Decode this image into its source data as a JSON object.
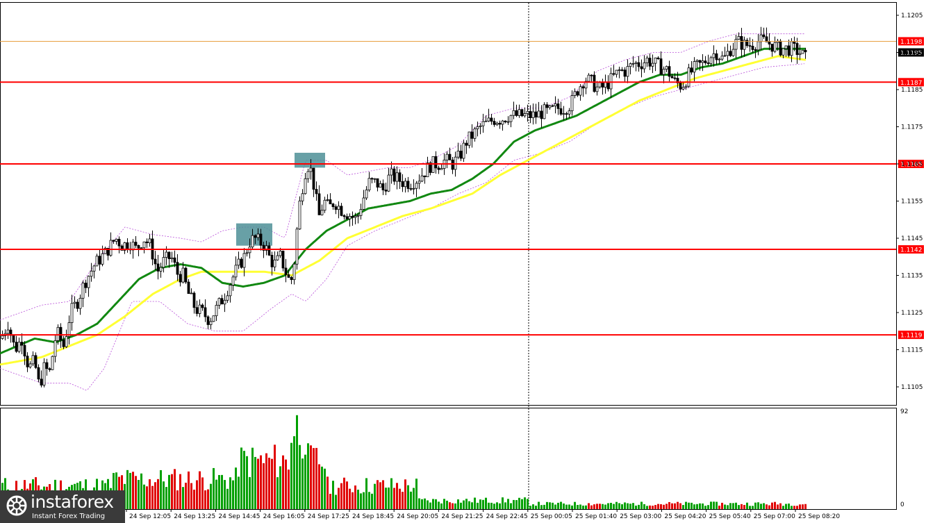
{
  "chart_data": [
    {
      "type": "candlestick",
      "ylim": [
        1.11,
        1.121
      ],
      "y_ticks": [
        "1.1205",
        "1.1195",
        "1.1185",
        "1.1175",
        "1.1165",
        "1.1155",
        "1.1145",
        "1.1135",
        "1.1125",
        "1.1115",
        "1.1105"
      ],
      "x_ticks": [
        "24 Sep 12:05",
        "24 Sep 13:25",
        "24 Sep 14:45",
        "24 Sep 16:05",
        "24 Sep 17:25",
        "24 Sep 18:45",
        "24 Sep 20:05",
        "24 Sep 21:25",
        "24 Sep 22:45",
        "25 Sep 00:05",
        "25 Sep 01:40",
        "25 Sep 03:00",
        "25 Sep 04:20",
        "25 Sep 05:40",
        "25 Sep 07:00",
        "25 Sep 08:20"
      ],
      "current_price": "1.1195",
      "high_price": "1.1198",
      "levels": [
        {
          "label": "1.1187",
          "value": 1.1187
        },
        {
          "label": "1.1165",
          "value": 1.1165
        },
        {
          "label": "1.1142",
          "value": 1.1142
        },
        {
          "label": "1.1119",
          "value": 1.1119
        }
      ],
      "close_path": [
        [
          0,
          1.1118
        ],
        [
          10,
          1.1122
        ],
        [
          20,
          1.1115
        ],
        [
          30,
          1.1118
        ],
        [
          40,
          1.111
        ],
        [
          48,
          1.1112
        ],
        [
          55,
          1.1105
        ],
        [
          62,
          1.111
        ],
        [
          70,
          1.1109
        ],
        [
          80,
          1.112
        ],
        [
          90,
          1.1116
        ],
        [
          100,
          1.1125
        ],
        [
          110,
          1.1128
        ],
        [
          120,
          1.1133
        ],
        [
          135,
          1.1138
        ],
        [
          150,
          1.1141
        ],
        [
          165,
          1.1145
        ],
        [
          175,
          1.1143
        ],
        [
          185,
          1.1144
        ],
        [
          195,
          1.1142
        ],
        [
          205,
          1.1145
        ],
        [
          215,
          1.1143
        ],
        [
          225,
          1.1136
        ],
        [
          235,
          1.1139
        ],
        [
          245,
          1.114
        ],
        [
          255,
          1.1135
        ],
        [
          262,
          1.1135
        ],
        [
          270,
          1.113
        ],
        [
          280,
          1.1126
        ],
        [
          290,
          1.1125
        ],
        [
          300,
          1.1123
        ],
        [
          310,
          1.1126
        ],
        [
          320,
          1.1129
        ],
        [
          330,
          1.1133
        ],
        [
          340,
          1.1137
        ],
        [
          350,
          1.114
        ],
        [
          358,
          1.1144
        ],
        [
          365,
          1.1145
        ],
        [
          372,
          1.1144
        ],
        [
          380,
          1.1143
        ],
        [
          388,
          1.1139
        ],
        [
          395,
          1.1138
        ],
        [
          402,
          1.114
        ],
        [
          408,
          1.1137
        ],
        [
          413,
          1.1134
        ],
        [
          418,
          1.1134
        ],
        [
          423,
          1.114
        ],
        [
          428,
          1.1152
        ],
        [
          433,
          1.1158
        ],
        [
          438,
          1.1163
        ],
        [
          443,
          1.1165
        ],
        [
          448,
          1.1162
        ],
        [
          452,
          1.1157
        ],
        [
          458,
          1.1151
        ],
        [
          465,
          1.1155
        ],
        [
          472,
          1.1153
        ],
        [
          480,
          1.1155
        ],
        [
          488,
          1.1153
        ],
        [
          496,
          1.1152
        ],
        [
          504,
          1.1151
        ],
        [
          512,
          1.115
        ],
        [
          520,
          1.1155
        ],
        [
          530,
          1.116
        ],
        [
          540,
          1.116
        ],
        [
          550,
          1.1158
        ],
        [
          560,
          1.1162
        ],
        [
          570,
          1.1161
        ],
        [
          580,
          1.116
        ],
        [
          590,
          1.116
        ],
        [
          600,
          1.1161
        ],
        [
          610,
          1.1163
        ],
        [
          620,
          1.1165
        ],
        [
          630,
          1.1165
        ],
        [
          640,
          1.1166
        ],
        [
          650,
          1.1165
        ],
        [
          660,
          1.1167
        ],
        [
          670,
          1.1171
        ],
        [
          680,
          1.1173
        ],
        [
          690,
          1.1175
        ],
        [
          700,
          1.1176
        ],
        [
          710,
          1.1177
        ],
        [
          720,
          1.1177
        ],
        [
          730,
          1.1178
        ],
        [
          740,
          1.1178
        ],
        [
          750,
          1.1178
        ],
        [
          760,
          1.1178
        ],
        [
          770,
          1.1178
        ],
        [
          780,
          1.1179
        ],
        [
          790,
          1.1179
        ],
        [
          800,
          1.118
        ],
        [
          810,
          1.118
        ],
        [
          820,
          1.1181
        ],
        [
          830,
          1.1185
        ],
        [
          840,
          1.1188
        ],
        [
          850,
          1.1187
        ],
        [
          860,
          1.1185
        ],
        [
          870,
          1.1186
        ],
        [
          880,
          1.1188
        ],
        [
          890,
          1.119
        ],
        [
          900,
          1.119
        ],
        [
          910,
          1.1192
        ],
        [
          920,
          1.1192
        ],
        [
          930,
          1.1193
        ],
        [
          940,
          1.1192
        ],
        [
          950,
          1.1191
        ],
        [
          960,
          1.119
        ],
        [
          970,
          1.1187
        ],
        [
          980,
          1.1186
        ],
        [
          990,
          1.1189
        ],
        [
          1000,
          1.1191
        ],
        [
          1010,
          1.1192
        ],
        [
          1020,
          1.1194
        ],
        [
          1030,
          1.1195
        ],
        [
          1040,
          1.1193
        ],
        [
          1050,
          1.1196
        ],
        [
          1060,
          1.1198
        ],
        [
          1070,
          1.1197
        ],
        [
          1080,
          1.1197
        ],
        [
          1090,
          1.1198
        ],
        [
          1100,
          1.1198
        ],
        [
          1110,
          1.1197
        ],
        [
          1120,
          1.1196
        ],
        [
          1130,
          1.1196
        ],
        [
          1140,
          1.1196
        ],
        [
          1150,
          1.1195
        ],
        [
          1160,
          1.1193
        ]
      ],
      "ma_green": [
        [
          0,
          1.1114
        ],
        [
          50,
          1.1118
        ],
        [
          80,
          1.1117
        ],
        [
          110,
          1.1119
        ],
        [
          140,
          1.1122
        ],
        [
          170,
          1.1128
        ],
        [
          200,
          1.1134
        ],
        [
          230,
          1.1137
        ],
        [
          260,
          1.1138
        ],
        [
          290,
          1.1137
        ],
        [
          320,
          1.1133
        ],
        [
          350,
          1.1132
        ],
        [
          380,
          1.1133
        ],
        [
          410,
          1.1135
        ],
        [
          440,
          1.1142
        ],
        [
          470,
          1.1147
        ],
        [
          500,
          1.115
        ],
        [
          530,
          1.1153
        ],
        [
          560,
          1.1154
        ],
        [
          590,
          1.1155
        ],
        [
          620,
          1.1157
        ],
        [
          650,
          1.1158
        ],
        [
          680,
          1.1161
        ],
        [
          710,
          1.1165
        ],
        [
          740,
          1.1171
        ],
        [
          770,
          1.1174
        ],
        [
          800,
          1.1176
        ],
        [
          830,
          1.1178
        ],
        [
          860,
          1.1181
        ],
        [
          890,
          1.1184
        ],
        [
          920,
          1.1187
        ],
        [
          950,
          1.1189
        ],
        [
          980,
          1.1189
        ],
        [
          1010,
          1.1191
        ],
        [
          1040,
          1.1192
        ],
        [
          1070,
          1.1194
        ],
        [
          1100,
          1.1196
        ],
        [
          1130,
          1.1196
        ],
        [
          1160,
          1.1196
        ]
      ],
      "ma_yellow": [
        [
          0,
          1.1111
        ],
        [
          60,
          1.1113
        ],
        [
          100,
          1.1116
        ],
        [
          140,
          1.1119
        ],
        [
          180,
          1.1124
        ],
        [
          220,
          1.113
        ],
        [
          260,
          1.1134
        ],
        [
          290,
          1.1136
        ],
        [
          320,
          1.1136
        ],
        [
          350,
          1.1136
        ],
        [
          380,
          1.1136
        ],
        [
          420,
          1.1135
        ],
        [
          460,
          1.1139
        ],
        [
          500,
          1.1145
        ],
        [
          540,
          1.1148
        ],
        [
          580,
          1.1151
        ],
        [
          620,
          1.1153
        ],
        [
          650,
          1.1155
        ],
        [
          680,
          1.1157
        ],
        [
          720,
          1.1162
        ],
        [
          760,
          1.1166
        ],
        [
          800,
          1.117
        ],
        [
          840,
          1.1174
        ],
        [
          880,
          1.1178
        ],
        [
          920,
          1.1182
        ],
        [
          960,
          1.1185
        ],
        [
          1000,
          1.1188
        ],
        [
          1040,
          1.119
        ],
        [
          1080,
          1.1192
        ],
        [
          1120,
          1.1194
        ],
        [
          1160,
          1.1193
        ]
      ],
      "band_upper": [
        [
          0,
          1.1123
        ],
        [
          60,
          1.1127
        ],
        [
          100,
          1.1128
        ],
        [
          140,
          1.1139
        ],
        [
          180,
          1.1148
        ],
        [
          220,
          1.1146
        ],
        [
          260,
          1.1145
        ],
        [
          290,
          1.1144
        ],
        [
          320,
          1.1147
        ],
        [
          350,
          1.1148
        ],
        [
          380,
          1.1148
        ],
        [
          410,
          1.1145
        ],
        [
          440,
          1.1166
        ],
        [
          470,
          1.1166
        ],
        [
          500,
          1.1162
        ],
        [
          530,
          1.1163
        ],
        [
          560,
          1.1164
        ],
        [
          590,
          1.1164
        ],
        [
          620,
          1.1166
        ],
        [
          660,
          1.117
        ],
        [
          700,
          1.1178
        ],
        [
          740,
          1.118
        ],
        [
          780,
          1.118
        ],
        [
          820,
          1.1183
        ],
        [
          860,
          1.119
        ],
        [
          900,
          1.1193
        ],
        [
          940,
          1.1195
        ],
        [
          980,
          1.1195
        ],
        [
          1020,
          1.1198
        ],
        [
          1060,
          1.12
        ],
        [
          1100,
          1.12
        ],
        [
          1160,
          1.12
        ]
      ],
      "band_lower": [
        [
          0,
          1.111
        ],
        [
          60,
          1.1106
        ],
        [
          100,
          1.1106
        ],
        [
          125,
          1.1104
        ],
        [
          150,
          1.111
        ],
        [
          190,
          1.1128
        ],
        [
          230,
          1.1128
        ],
        [
          270,
          1.1122
        ],
        [
          310,
          1.112
        ],
        [
          350,
          1.112
        ],
        [
          390,
          1.1126
        ],
        [
          420,
          1.113
        ],
        [
          440,
          1.1128
        ],
        [
          470,
          1.1134
        ],
        [
          500,
          1.1143
        ],
        [
          540,
          1.1147
        ],
        [
          580,
          1.115
        ],
        [
          620,
          1.1153
        ],
        [
          660,
          1.1157
        ],
        [
          700,
          1.116
        ],
        [
          740,
          1.1166
        ],
        [
          780,
          1.1168
        ],
        [
          820,
          1.1171
        ],
        [
          860,
          1.1176
        ],
        [
          900,
          1.118
        ],
        [
          940,
          1.1183
        ],
        [
          980,
          1.1185
        ],
        [
          1020,
          1.1187
        ],
        [
          1060,
          1.1189
        ],
        [
          1100,
          1.1191
        ],
        [
          1160,
          1.1192
        ]
      ],
      "highlight_boxes": [
        {
          "x0": 340,
          "x1": 392,
          "y0": 1.1143,
          "y1": 1.1149
        },
        {
          "x0": 424,
          "x1": 468,
          "y0": 1.1164,
          "y1": 1.1168
        }
      ],
      "colors": {
        "level_line": "#ff0000",
        "high_line": "#e8a040",
        "ma_green": "#118811",
        "ma_yellow": "#ffff33",
        "band": "#b84dd9",
        "box": "#4e8f97"
      }
    },
    {
      "type": "bar",
      "series_name": "volume",
      "ylim": [
        0,
        92
      ],
      "y_tick_top": "92",
      "y_tick_bottom": "0",
      "colors": {
        "up": "#00a000",
        "down": "#e00000"
      }
    }
  ],
  "logo": {
    "name": "instaforex",
    "tagline": "Instant Forex Trading"
  }
}
